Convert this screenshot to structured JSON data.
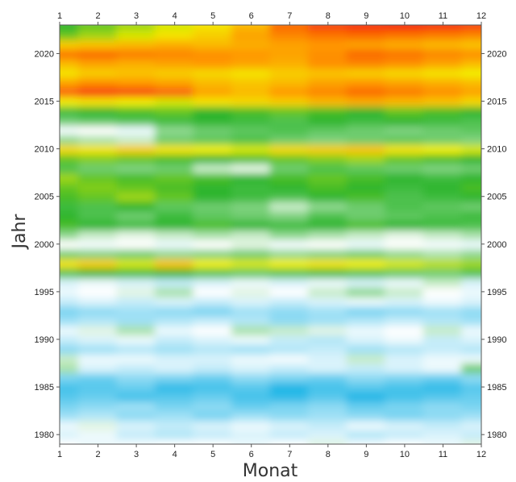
{
  "chart_data": {
    "type": "heatmap",
    "title": "",
    "xlabel": "Monat",
    "ylabel": "Jahr",
    "x_ticks": [
      1,
      2,
      3,
      4,
      5,
      6,
      7,
      8,
      9,
      10,
      11,
      12
    ],
    "y_ticks": [
      1980,
      1985,
      1990,
      1995,
      2000,
      2005,
      2010,
      2015,
      2020
    ],
    "xlim": [
      1,
      12
    ],
    "ylim": [
      1979,
      2023
    ],
    "grid": false,
    "legend": "none",
    "colormap": [
      "#1fb6e6",
      "#9fe0f5",
      "#ffffff",
      "#8fd88f",
      "#2db52d",
      "#f2ef00",
      "#ff9800",
      "#f41f10"
    ],
    "value_range": [
      -1.2,
      1.9
    ],
    "rows": [
      {
        "year": 1979,
        "values": [
          0.0,
          -0.1,
          -0.05,
          0.0,
          0.0,
          -0.1,
          0.0,
          0.05,
          -0.05,
          0.0,
          -0.1,
          0.05
        ]
      },
      {
        "year": 1980,
        "values": [
          -0.2,
          -0.1,
          -0.3,
          -0.4,
          -0.3,
          -0.2,
          -0.3,
          -0.2,
          -0.4,
          -0.3,
          -0.2,
          -0.3
        ]
      },
      {
        "year": 1981,
        "values": [
          -0.1,
          0.05,
          -0.2,
          -0.3,
          -0.2,
          -0.1,
          -0.2,
          -0.3,
          -0.1,
          -0.2,
          -0.3,
          -0.2
        ]
      },
      {
        "year": 1982,
        "values": [
          -0.5,
          -0.4,
          -0.6,
          -0.5,
          -0.7,
          -0.5,
          -0.6,
          -0.5,
          -0.6,
          -0.7,
          -0.6,
          -0.5
        ]
      },
      {
        "year": 1983,
        "values": [
          -0.7,
          -0.6,
          -0.5,
          -0.7,
          -0.6,
          -0.8,
          -0.7,
          -0.6,
          -0.8,
          -0.7,
          -0.6,
          -0.7
        ]
      },
      {
        "year": 1984,
        "values": [
          -0.9,
          -0.8,
          -1.0,
          -0.9,
          -0.8,
          -1.0,
          -1.1,
          -0.9,
          -1.2,
          -1.0,
          -0.9,
          -0.8
        ]
      },
      {
        "year": 1985,
        "values": [
          -1.0,
          -0.9,
          -0.8,
          -1.1,
          -1.0,
          -0.9,
          -1.2,
          -1.0,
          -0.9,
          -1.0,
          -1.1,
          -0.9
        ]
      },
      {
        "year": 1986,
        "values": [
          -0.7,
          -0.8,
          -0.6,
          -0.7,
          -0.8,
          -0.6,
          -0.7,
          -0.8,
          -0.6,
          -0.7,
          -0.8,
          -0.6
        ]
      },
      {
        "year": 1987,
        "values": [
          0.15,
          -0.2,
          -0.3,
          -0.2,
          -0.3,
          -0.2,
          -0.3,
          -0.2,
          -0.3,
          -0.2,
          -0.1,
          0.3
        ]
      },
      {
        "year": 1988,
        "values": [
          0.1,
          -0.1,
          -0.1,
          -0.2,
          -0.2,
          -0.1,
          -0.05,
          -0.2,
          0.1,
          -0.2,
          -0.1,
          -0.1
        ]
      },
      {
        "year": 1989,
        "values": [
          -0.6,
          -0.5,
          -0.4,
          -0.5,
          -0.4,
          -0.5,
          -0.4,
          -0.3,
          -0.5,
          -0.4,
          -0.3,
          -0.4
        ]
      },
      {
        "year": 1990,
        "values": [
          -0.3,
          -0.2,
          -0.1,
          -0.3,
          -0.2,
          -0.1,
          -0.3,
          -0.4,
          -0.2,
          -0.1,
          -0.3,
          -0.2
        ]
      },
      {
        "year": 1991,
        "values": [
          -0.1,
          0.05,
          0.15,
          -0.1,
          0.0,
          0.15,
          0.1,
          0.05,
          -0.1,
          0.0,
          0.1,
          -0.1
        ]
      },
      {
        "year": 1992,
        "values": [
          -0.5,
          -0.4,
          -0.5,
          -0.4,
          -0.3,
          -0.4,
          -0.6,
          -0.5,
          -0.4,
          -0.3,
          -0.4,
          -0.5
        ]
      },
      {
        "year": 1993,
        "values": [
          -0.7,
          -0.6,
          -0.5,
          -0.6,
          -0.7,
          -0.5,
          -0.6,
          -0.5,
          -0.7,
          -0.6,
          -0.5,
          -0.6
        ]
      },
      {
        "year": 1994,
        "values": [
          -0.3,
          -0.2,
          -0.3,
          -0.2,
          -0.3,
          -0.2,
          -0.3,
          -0.2,
          -0.1,
          -0.2,
          -0.1,
          -0.2
        ]
      },
      {
        "year": 1995,
        "values": [
          -0.1,
          0.0,
          0.05,
          0.15,
          0.0,
          0.05,
          0.0,
          0.1,
          0.2,
          0.1,
          0.0,
          -0.1
        ]
      },
      {
        "year": 1996,
        "values": [
          -0.2,
          -0.1,
          -0.2,
          -0.3,
          -0.2,
          -0.1,
          -0.2,
          -0.1,
          -0.2,
          -0.1,
          0.1,
          -0.2
        ]
      },
      {
        "year": 1997,
        "values": [
          0.4,
          0.5,
          0.45,
          0.5,
          0.4,
          0.35,
          0.4,
          0.45,
          0.4,
          0.35,
          0.3,
          0.4
        ]
      },
      {
        "year": 1998,
        "values": [
          0.9,
          1.0,
          0.8,
          1.05,
          0.85,
          0.8,
          0.85,
          0.9,
          0.85,
          0.8,
          0.75,
          0.7
        ]
      },
      {
        "year": 1999,
        "values": [
          0.3,
          0.25,
          0.3,
          0.2,
          0.25,
          0.3,
          0.2,
          0.25,
          0.3,
          0.2,
          0.15,
          0.2
        ]
      },
      {
        "year": 2000,
        "values": [
          0.0,
          -0.05,
          0.0,
          -0.1,
          0.0,
          0.05,
          -0.05,
          0.0,
          -0.1,
          0.0,
          -0.05,
          -0.1
        ]
      },
      {
        "year": 2001,
        "values": [
          0.2,
          0.1,
          0.05,
          0.1,
          0.15,
          0.1,
          0.2,
          0.15,
          0.1,
          0.05,
          0.1,
          0.15
        ]
      },
      {
        "year": 2002,
        "values": [
          0.55,
          0.5,
          0.45,
          0.5,
          0.55,
          0.5,
          0.45,
          0.5,
          0.55,
          0.5,
          0.45,
          0.4
        ]
      },
      {
        "year": 2003,
        "values": [
          0.5,
          0.4,
          0.3,
          0.45,
          0.35,
          0.3,
          0.25,
          0.4,
          0.3,
          0.35,
          0.4,
          0.45
        ]
      },
      {
        "year": 2004,
        "values": [
          0.45,
          0.4,
          0.5,
          0.35,
          0.3,
          0.25,
          0.1,
          0.2,
          0.3,
          0.4,
          0.35,
          0.3
        ]
      },
      {
        "year": 2005,
        "values": [
          0.55,
          0.6,
          0.7,
          0.6,
          0.5,
          0.45,
          0.4,
          0.5,
          0.55,
          0.4,
          0.45,
          0.5
        ]
      },
      {
        "year": 2006,
        "values": [
          0.6,
          0.65,
          0.6,
          0.55,
          0.5,
          0.45,
          0.5,
          0.55,
          0.5,
          0.45,
          0.5,
          0.55
        ]
      },
      {
        "year": 2007,
        "values": [
          0.7,
          0.6,
          0.55,
          0.6,
          0.55,
          0.5,
          0.55,
          0.6,
          0.55,
          0.5,
          0.45,
          0.5
        ]
      },
      {
        "year": 2008,
        "values": [
          0.4,
          0.3,
          0.25,
          0.3,
          0.1,
          0.05,
          0.3,
          0.4,
          0.35,
          0.3,
          0.25,
          0.3
        ]
      },
      {
        "year": 2009,
        "values": [
          0.6,
          0.65,
          0.6,
          0.55,
          0.5,
          0.55,
          0.6,
          0.65,
          0.7,
          0.6,
          0.55,
          0.5
        ]
      },
      {
        "year": 2010,
        "values": [
          0.95,
          0.9,
          1.0,
          0.9,
          0.85,
          0.8,
          0.95,
          1.0,
          1.05,
          0.9,
          0.85,
          0.8
        ]
      },
      {
        "year": 2011,
        "values": [
          0.2,
          0.15,
          0.1,
          0.3,
          0.35,
          0.4,
          0.3,
          0.25,
          0.3,
          0.35,
          0.3,
          0.25
        ]
      },
      {
        "year": 2012,
        "values": [
          -0.05,
          0.0,
          -0.1,
          0.2,
          0.3,
          0.35,
          0.4,
          0.35,
          0.3,
          0.25,
          0.3,
          0.35
        ]
      },
      {
        "year": 2013,
        "values": [
          0.3,
          0.35,
          0.4,
          0.45,
          0.5,
          0.45,
          0.4,
          0.5,
          0.45,
          0.5,
          0.45,
          0.4
        ]
      },
      {
        "year": 2014,
        "values": [
          0.45,
          0.5,
          0.55,
          0.6,
          0.5,
          0.55,
          0.6,
          0.55,
          0.5,
          0.6,
          0.55,
          0.5
        ]
      },
      {
        "year": 2015,
        "values": [
          0.85,
          0.9,
          0.85,
          0.8,
          0.9,
          0.95,
          1.0,
          1.1,
          1.15,
          1.1,
          1.05,
          0.95
        ]
      },
      {
        "year": 2016,
        "values": [
          1.55,
          1.75,
          1.7,
          1.55,
          1.2,
          1.1,
          1.25,
          1.35,
          1.5,
          1.4,
          1.3,
          1.2
        ]
      },
      {
        "year": 2017,
        "values": [
          1.2,
          1.3,
          1.25,
          1.2,
          1.1,
          1.05,
          1.1,
          1.2,
          1.25,
          1.2,
          1.15,
          1.1
        ]
      },
      {
        "year": 2018,
        "values": [
          0.9,
          1.0,
          1.05,
          1.0,
          0.95,
          0.9,
          1.0,
          1.05,
          1.0,
          0.95,
          0.9,
          0.85
        ]
      },
      {
        "year": 2019,
        "values": [
          1.1,
          1.2,
          1.15,
          1.2,
          1.25,
          1.2,
          1.15,
          1.3,
          1.35,
          1.3,
          1.2,
          1.1
        ]
      },
      {
        "year": 2020,
        "values": [
          1.45,
          1.5,
          1.4,
          1.35,
          1.3,
          1.25,
          1.2,
          1.3,
          1.5,
          1.45,
          1.35,
          1.3
        ]
      },
      {
        "year": 2021,
        "values": [
          1.0,
          1.05,
          1.1,
          1.15,
          1.1,
          1.15,
          1.2,
          1.25,
          1.2,
          1.15,
          1.1,
          1.05
        ]
      },
      {
        "year": 2022,
        "values": [
          0.6,
          0.7,
          0.8,
          0.9,
          1.0,
          1.2,
          1.35,
          1.45,
          1.5,
          1.45,
          1.4,
          1.35
        ]
      },
      {
        "year": 2023,
        "values": [
          0.5,
          0.6,
          0.7,
          0.8,
          0.9,
          1.1,
          1.5,
          1.7,
          1.8,
          1.85,
          1.8,
          1.7
        ]
      }
    ]
  }
}
